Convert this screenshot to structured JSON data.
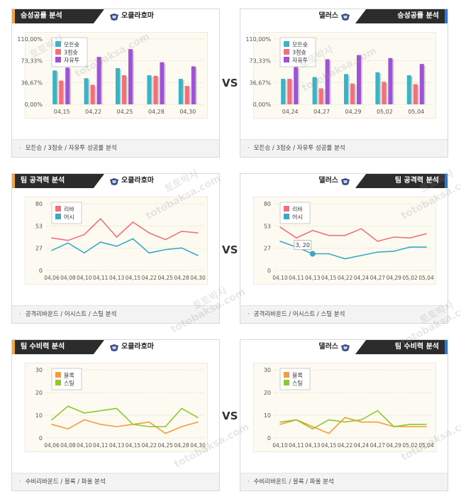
{
  "vs_label": "VS",
  "watermarks": [
    "토토박사",
    "totobaksa.com"
  ],
  "panels": [
    {
      "id": "p1",
      "side": "left",
      "title": "승성공률 분석",
      "team": "오클라호마",
      "accent": "#f4a72c",
      "footer": "모든승 / 3점슛 / 자유투 성공률 분석",
      "chart_data": {
        "type": "bar",
        "categories": [
          "04,15",
          "04,22",
          "04,25",
          "04,28",
          "04,30"
        ],
        "yticks": [
          "110,00%",
          "73,33%",
          "36,67%",
          "0,00%"
        ],
        "ylim": [
          0,
          110
        ],
        "series": [
          {
            "name": "모든슛",
            "color": "#39b3c6",
            "values": [
              57,
              44,
              61,
              49,
              43
            ]
          },
          {
            "name": "3점슛",
            "color": "#f36f7a",
            "values": [
              40,
              33,
              49,
              48,
              31
            ]
          },
          {
            "name": "자유투",
            "color": "#a052d6",
            "values": [
              62,
              80,
              93,
              71,
              64
            ]
          }
        ]
      }
    },
    {
      "id": "p2",
      "side": "right",
      "title": "승성공률 분석",
      "team": "댈러스",
      "accent": "#2f76d6",
      "footer": "모든승 / 3점슛 / 자유투 성공률 분석",
      "chart_data": {
        "type": "bar",
        "categories": [
          "04,24",
          "04,27",
          "04,29",
          "05,02",
          "05,04"
        ],
        "yticks": [
          "110,00%",
          "73,33%",
          "36,67%",
          "0,00%"
        ],
        "ylim": [
          0,
          110
        ],
        "series": [
          {
            "name": "모든슛",
            "color": "#39b3c6",
            "values": [
              43,
              46,
              51,
              54,
              49
            ]
          },
          {
            "name": "3점슛",
            "color": "#f36f7a",
            "values": [
              43,
              27,
              35,
              38,
              34
            ]
          },
          {
            "name": "자유투",
            "color": "#a052d6",
            "values": [
              63,
              76,
              83,
              78,
              68
            ]
          }
        ]
      }
    },
    {
      "id": "p3",
      "side": "left",
      "title": "팀 공격력 분석",
      "team": "오클라호마",
      "accent": "#f4a72c",
      "footer": "공격리바운드 / 어시스트 / 스틸 분석",
      "chart_data": {
        "type": "line",
        "categories": [
          "04,06",
          "04,08",
          "04,10",
          "04,11",
          "04,13",
          "04,15",
          "04,22",
          "04,25",
          "04,28",
          "04,30"
        ],
        "yticks": [
          "80",
          "53",
          "27",
          "0"
        ],
        "ylim": [
          0,
          80
        ],
        "series": [
          {
            "name": "리바",
            "color": "#f36f7a",
            "values": [
              39,
              36,
              43,
              62,
              40,
              58,
              45,
              37,
              47,
              45
            ]
          },
          {
            "name": "어시",
            "color": "#39a9c6",
            "values": [
              24,
              33,
              21,
              34,
              29,
              38,
              21,
              25,
              27,
              18
            ]
          }
        ]
      }
    },
    {
      "id": "p4",
      "side": "right",
      "title": "팀 공격력 분석",
      "team": "댈러스",
      "accent": "#2f76d6",
      "footer": "공격리바운드 / 어시스트 / 스틸 분석",
      "tooltip": "3, 20",
      "chart_data": {
        "type": "line",
        "categories": [
          "04,10",
          "04,11",
          "04,13",
          "04,15",
          "04,22",
          "04,24",
          "04,27",
          "04,29",
          "05,02",
          "05,04"
        ],
        "yticks": [
          "80",
          "53",
          "27",
          "0"
        ],
        "ylim": [
          0,
          80
        ],
        "series": [
          {
            "name": "리바",
            "color": "#f36f7a",
            "values": [
              52,
              39,
              48,
              42,
              42,
              50,
              35,
              40,
              39,
              44
            ]
          },
          {
            "name": "어시",
            "color": "#39a9c6",
            "values": [
              35,
              28,
              20,
              20,
              14,
              18,
              22,
              23,
              28,
              28
            ]
          }
        ]
      }
    },
    {
      "id": "p5",
      "side": "left",
      "title": "팀 수비력 분석",
      "team": "오클라호마",
      "accent": "#f4a72c",
      "footer": "수비리바운드 / 블록 / 파울 분석",
      "chart_data": {
        "type": "line",
        "categories": [
          "04,06",
          "04,08",
          "04,10",
          "04,11",
          "04,13",
          "04,15",
          "04,22",
          "04,25",
          "04,28",
          "04,30"
        ],
        "yticks": [
          "30",
          "20",
          "10",
          "0"
        ],
        "ylim": [
          0,
          30
        ],
        "series": [
          {
            "name": "블록",
            "color": "#f59b37",
            "values": [
              6,
              4,
              8,
              6,
              5,
              6,
              7,
              2,
              5,
              7
            ]
          },
          {
            "name": "스틸",
            "color": "#8fc82e",
            "values": [
              8,
              14,
              11,
              12,
              13,
              6,
              5,
              5,
              13,
              9
            ]
          }
        ]
      }
    },
    {
      "id": "p6",
      "side": "right",
      "title": "팀 수비력 분석",
      "team": "댈러스",
      "accent": "#2f76d6",
      "footer": "수비리바운드 / 블록 / 파울 분석",
      "chart_data": {
        "type": "line",
        "categories": [
          "04,10",
          "04,11",
          "04,13",
          "04,15",
          "04,22",
          "04,24",
          "04,27",
          "04,29",
          "05,02",
          "05,04"
        ],
        "yticks": [
          "30",
          "20",
          "10",
          "0"
        ],
        "ylim": [
          0,
          30
        ],
        "series": [
          {
            "name": "블록",
            "color": "#f59b37",
            "values": [
              6,
              8,
              5,
              2,
              9,
              7,
              7,
              5,
              5,
              5
            ]
          },
          {
            "name": "스틸",
            "color": "#8fc82e",
            "values": [
              7,
              8,
              4,
              8,
              7,
              8,
              12,
              5,
              6,
              6
            ]
          }
        ]
      }
    }
  ]
}
